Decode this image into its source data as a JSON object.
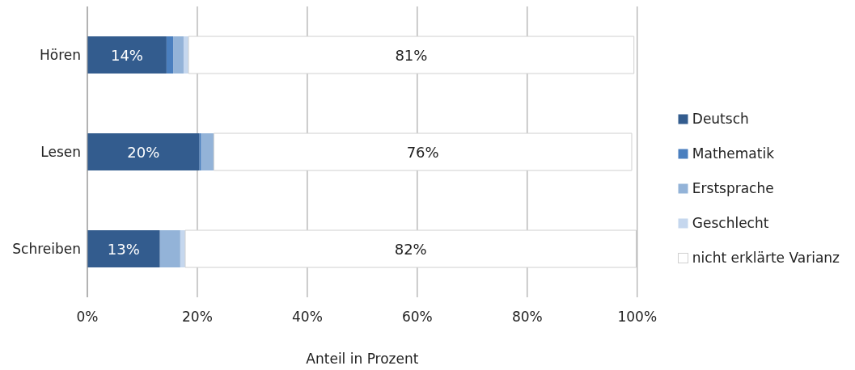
{
  "chart_data": {
    "type": "bar",
    "orientation": "horizontal",
    "stacked": true,
    "categories": [
      "Hören",
      "Lesen",
      "Schreiben"
    ],
    "series": [
      {
        "name": "Deutsch",
        "color": "#335c8e",
        "values": [
          14.4,
          20.4,
          13.2
        ],
        "value_labels": [
          "14%",
          "20%",
          "13%"
        ]
      },
      {
        "name": "Mathematik",
        "color": "#4a7fbf",
        "values": [
          1.2,
          0.3,
          0
        ]
      },
      {
        "name": "Erstsprache",
        "color": "#93b3d8",
        "values": [
          1.9,
          2.3,
          3.7
        ]
      },
      {
        "name": "Geschlecht",
        "color": "#c5d7ee",
        "values": [
          0.9,
          null,
          0.9
        ]
      },
      {
        "name": "nicht erklärte Varianz",
        "color": "#ffffff",
        "values": [
          81,
          76,
          82
        ],
        "value_labels": [
          "81%",
          "76%",
          "82%"
        ]
      }
    ],
    "xlim": [
      0,
      100
    ],
    "xticks": [
      {
        "value": 0,
        "label": "0%"
      },
      {
        "value": 20,
        "label": "20%"
      },
      {
        "value": 40,
        "label": "40%"
      },
      {
        "value": 60,
        "label": "60%"
      },
      {
        "value": 80,
        "label": "80%"
      },
      {
        "value": 100,
        "label": "100%"
      }
    ],
    "xlabel": "Anteil in Prozent",
    "grid": "x",
    "legend": "right"
  }
}
